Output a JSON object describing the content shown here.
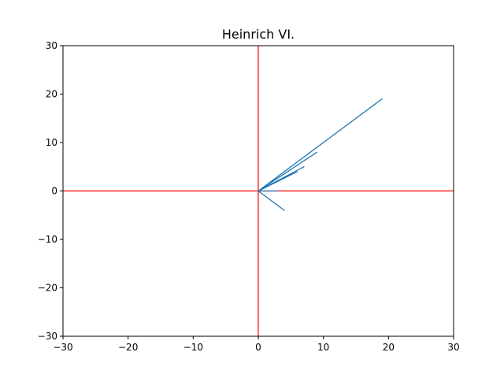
{
  "chart_data": {
    "type": "line",
    "title": "Heinrich VI.",
    "xlim": [
      -30,
      30
    ],
    "ylim": [
      -30,
      30
    ],
    "x_ticks": [
      -30,
      -20,
      -10,
      0,
      10,
      20,
      30
    ],
    "y_ticks": [
      -30,
      -20,
      -10,
      0,
      10,
      20,
      30
    ],
    "x_tick_labels": [
      "−30",
      "−20",
      "−10",
      "0",
      "10",
      "20",
      "30"
    ],
    "y_tick_labels": [
      "−30",
      "−20",
      "−10",
      "0",
      "10",
      "20",
      "30"
    ],
    "grid": false,
    "reference_lines": {
      "color": "#ff0000",
      "x": 0,
      "y": 0
    },
    "series": [
      {
        "color": "#1f77b4",
        "points": [
          [
            0,
            0
          ],
          [
            19,
            19
          ],
          [
            0,
            0
          ],
          [
            9,
            8
          ],
          [
            0,
            0
          ],
          [
            8,
            8
          ],
          [
            0,
            0
          ],
          [
            7,
            5
          ],
          [
            0,
            0
          ],
          [
            6,
            4
          ],
          [
            0,
            0
          ],
          [
            3,
            0
          ],
          [
            0,
            0
          ],
          [
            4,
            -4
          ],
          [
            0,
            0
          ],
          [
            1,
            0
          ],
          [
            0,
            0
          ],
          [
            2,
            0
          ],
          [
            0,
            0
          ]
        ]
      }
    ]
  }
}
